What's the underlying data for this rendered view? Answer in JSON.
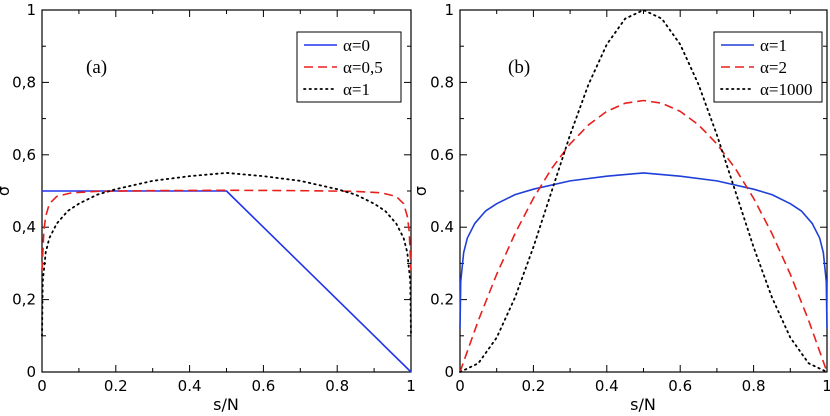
{
  "chart_data": [
    {
      "type": "line",
      "panel_label": "(a)",
      "xlabel": "s/N",
      "ylabel": "σ",
      "xlim": [
        0,
        1
      ],
      "ylim": [
        0,
        1
      ],
      "x_ticks": [
        "0",
        "0.2",
        "0.4",
        "0.6",
        "0.8",
        "1"
      ],
      "y_ticks": [
        "0",
        "0,2",
        "0,4",
        "0,6",
        "0,8",
        "1"
      ],
      "legend": {
        "position": "top-right"
      },
      "series": [
        {
          "name": "α=0",
          "color": "#2233ee",
          "style": "solid",
          "x": [
            0,
            0.5,
            1
          ],
          "y": [
            0.5,
            0.5,
            1e-09
          ]
        },
        {
          "name": "α=0,5",
          "color": "#e8201c",
          "style": "dashed",
          "x": [
            0,
            0.005,
            0.01,
            0.02,
            0.04,
            0.08,
            0.15,
            0.3,
            0.5,
            0.7,
            0.85,
            0.92,
            0.96,
            0.98,
            0.99,
            0.995,
            1
          ],
          "y": [
            0.28,
            0.39,
            0.43,
            0.465,
            0.485,
            0.495,
            0.499,
            0.501,
            0.502,
            0.501,
            0.499,
            0.495,
            0.485,
            0.465,
            0.43,
            0.39,
            0.28
          ]
        },
        {
          "name": "α=1",
          "color": "#000000",
          "style": "dotted",
          "x": [
            0,
            0.002,
            0.01,
            0.02,
            0.04,
            0.07,
            0.1,
            0.15,
            0.2,
            0.3,
            0.4,
            0.5,
            0.6,
            0.7,
            0.8,
            0.85,
            0.9,
            0.93,
            0.96,
            0.98,
            0.99,
            0.998,
            1
          ],
          "y": [
            0.1,
            0.25,
            0.33,
            0.37,
            0.41,
            0.445,
            0.465,
            0.49,
            0.505,
            0.528,
            0.541,
            0.55,
            0.541,
            0.528,
            0.505,
            0.49,
            0.465,
            0.445,
            0.41,
            0.37,
            0.33,
            0.25,
            0.1
          ]
        }
      ]
    },
    {
      "type": "line",
      "panel_label": "(b)",
      "xlabel": "s/N",
      "ylabel": "σ",
      "xlim": [
        0,
        1
      ],
      "ylim": [
        0,
        1
      ],
      "x_ticks": [
        "0",
        "0.2",
        "0.4",
        "0.6",
        "0.8",
        "1"
      ],
      "y_ticks": [
        "0",
        "0.2",
        "0.4",
        "0.6",
        "0.8",
        "1"
      ],
      "legend": {
        "position": "top-right"
      },
      "series": [
        {
          "name": "α=1",
          "color": "#1f3fd8",
          "style": "solid",
          "x": [
            0,
            0.002,
            0.01,
            0.02,
            0.04,
            0.07,
            0.1,
            0.15,
            0.2,
            0.3,
            0.4,
            0.5,
            0.6,
            0.7,
            0.8,
            0.85,
            0.9,
            0.93,
            0.96,
            0.98,
            0.99,
            0.998,
            1
          ],
          "y": [
            0.12,
            0.25,
            0.33,
            0.37,
            0.41,
            0.445,
            0.465,
            0.49,
            0.505,
            0.528,
            0.541,
            0.55,
            0.541,
            0.528,
            0.505,
            0.49,
            0.465,
            0.445,
            0.41,
            0.37,
            0.33,
            0.25,
            0.12
          ]
        },
        {
          "name": "α=2",
          "color": "#e8201c",
          "style": "dashed",
          "x": [
            0,
            0.05,
            0.1,
            0.15,
            0.2,
            0.25,
            0.3,
            0.35,
            0.4,
            0.45,
            0.5,
            0.55,
            0.6,
            0.65,
            0.7,
            0.75,
            0.8,
            0.85,
            0.9,
            0.95,
            1
          ],
          "y": [
            0,
            0.1425,
            0.27,
            0.3825,
            0.48,
            0.5625,
            0.63,
            0.6825,
            0.72,
            0.7425,
            0.75,
            0.7425,
            0.72,
            0.6825,
            0.63,
            0.5625,
            0.48,
            0.3825,
            0.27,
            0.1425,
            0
          ]
        },
        {
          "name": "α=1000",
          "color": "#000000",
          "style": "dotted",
          "x": [
            0,
            0.05,
            0.1,
            0.15,
            0.2,
            0.25,
            0.3,
            0.35,
            0.4,
            0.45,
            0.5,
            0.55,
            0.6,
            0.65,
            0.7,
            0.75,
            0.8,
            0.85,
            0.9,
            0.95,
            1
          ],
          "y": [
            0,
            0.024,
            0.095,
            0.206,
            0.345,
            0.5,
            0.655,
            0.794,
            0.905,
            0.976,
            1.0,
            0.976,
            0.905,
            0.794,
            0.655,
            0.5,
            0.345,
            0.206,
            0.095,
            0.024,
            0
          ]
        }
      ]
    }
  ]
}
